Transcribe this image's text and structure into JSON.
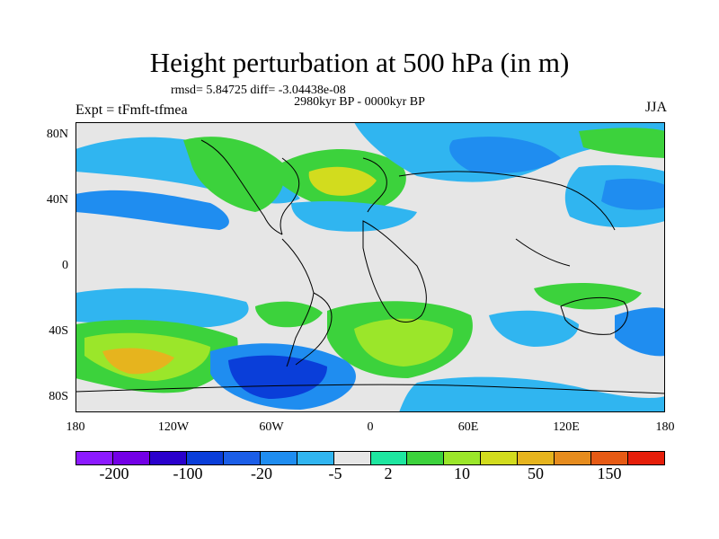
{
  "title": "Height perturbation at 500 hPa (in m)",
  "stats": "rmsd= 5.84725 diff= -3.04438e-08",
  "period": "2980kyr BP - 0000kyr BP",
  "experiment": "Expt = tFmft-tfmea",
  "season": "JJA",
  "y_ticks": [
    "80N",
    "40N",
    "0",
    "40S",
    "80S"
  ],
  "x_ticks": [
    "180",
    "120W",
    "60W",
    "0",
    "60E",
    "120E",
    "180"
  ],
  "colorbar": {
    "colors": [
      "#8c1aff",
      "#7300e6",
      "#2a00cc",
      "#0a3ed9",
      "#1b5ee8",
      "#1f8df0",
      "#30b5f0",
      "#e6e6e6",
      "#1ee6a0",
      "#3cd23c",
      "#9be62a",
      "#d2dc1e",
      "#e6b41e",
      "#e68c1e",
      "#e65a14",
      "#e61e0a"
    ],
    "labels": [
      "-200",
      "-100",
      "-20",
      "-5",
      "2",
      "10",
      "50",
      "150"
    ]
  },
  "map_regions": [
    {
      "name": "n-atlantic-high",
      "color": "#3cd23c"
    },
    {
      "name": "n-atlantic-core",
      "color": "#d2dc1e"
    },
    {
      "name": "s-pacific-high",
      "color": "#9be62a"
    },
    {
      "name": "s-pacific-core",
      "color": "#e6b41e"
    },
    {
      "name": "s-indian-high",
      "color": "#9be62a"
    },
    {
      "name": "southern-low",
      "color": "#0a3ed9"
    },
    {
      "name": "eurasia-low",
      "color": "#1f8df0"
    }
  ]
}
